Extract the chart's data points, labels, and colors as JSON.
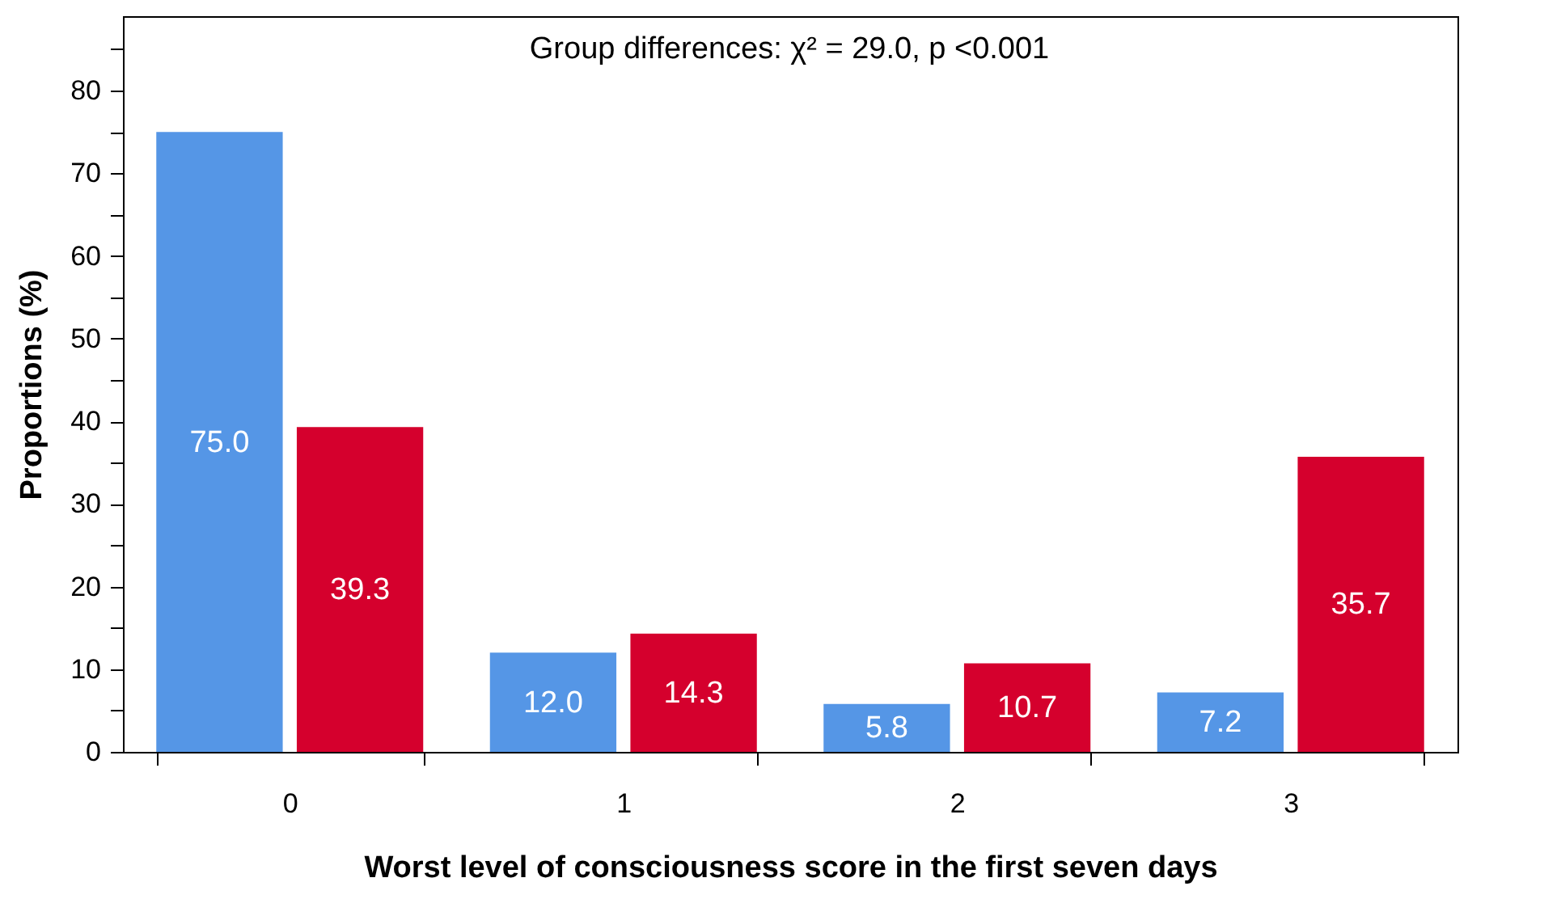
{
  "chart_data": {
    "type": "bar",
    "xlabel": "Worst level of consciousness score in the first seven days",
    "ylabel": "Proportions (%)",
    "annotations": [
      "Group differences: χ² = 29.0, p <0.001"
    ],
    "categories": [
      "0",
      "1",
      "2",
      "3"
    ],
    "series": [
      {
        "color": "#5596e6",
        "values": [
          75.0,
          12.0,
          5.8,
          7.2
        ],
        "value_labels": [
          "75.0",
          "12.0",
          "5.8",
          "7.2"
        ]
      },
      {
        "color": "#d5002d",
        "values": [
          39.3,
          14.3,
          10.7,
          35.7
        ],
        "value_labels": [
          "39.3",
          "14.3",
          "10.7",
          "35.7"
        ]
      }
    ],
    "ylim": [
      0,
      89
    ],
    "yticks": [
      0,
      {
        "value": 5,
        "label": null
      },
      10,
      {
        "value": 15,
        "label": null
      },
      20,
      {
        "value": 25,
        "label": null
      },
      30,
      {
        "value": 35,
        "label": null
      },
      40,
      {
        "value": 45,
        "label": null
      },
      50,
      {
        "value": 55,
        "label": null
      },
      60,
      {
        "value": 65,
        "label": null
      },
      70,
      {
        "value": 75,
        "label": null
      },
      80,
      {
        "value": 85,
        "label": null
      }
    ],
    "grid": false,
    "legend": false
  }
}
